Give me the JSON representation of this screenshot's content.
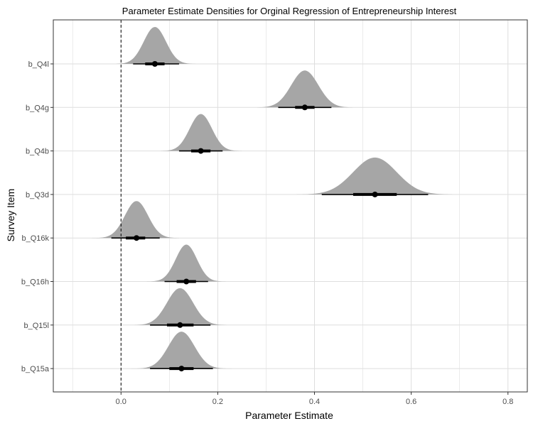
{
  "chart_data": {
    "type": "density",
    "title": "Parameter Estimate Densities for Orginal Regression of Entrepreneurship Interest",
    "xlabel": "Parameter Estimate",
    "ylabel": "Survey Item",
    "xlim": [
      -0.14,
      0.84
    ],
    "x_ticks": [
      0.0,
      0.2,
      0.4,
      0.6,
      0.8
    ],
    "x_tick_labels": [
      "0.0",
      "0.2",
      "0.4",
      "0.6",
      "0.8"
    ],
    "reference_line_x": 0,
    "grid": true,
    "colors": {
      "density": "#a6a6a6",
      "point": "#000000",
      "grid": "#dedede",
      "panel_border": "#333333"
    },
    "categories": [
      "b_Q4l",
      "b_Q4g",
      "b_Q4b",
      "b_Q3d",
      "b_Q16k",
      "b_Q16h",
      "b_Q15l",
      "b_Q15a"
    ],
    "series": [
      {
        "name": "b_Q4l",
        "mean": 0.07,
        "sd": 0.023,
        "min": -0.01,
        "max": 0.155,
        "ci66": [
          0.05,
          0.09
        ],
        "ci95": [
          0.025,
          0.12
        ]
      },
      {
        "name": "b_Q4g",
        "mean": 0.38,
        "sd": 0.028,
        "min": 0.26,
        "max": 0.49,
        "ci66": [
          0.36,
          0.4
        ],
        "ci95": [
          0.325,
          0.435
        ]
      },
      {
        "name": "b_Q4b",
        "mean": 0.165,
        "sd": 0.023,
        "min": 0.082,
        "max": 0.25,
        "ci66": [
          0.145,
          0.185
        ],
        "ci95": [
          0.12,
          0.21
        ]
      },
      {
        "name": "b_Q3d",
        "mean": 0.525,
        "sd": 0.045,
        "min": 0.345,
        "max": 0.715,
        "ci66": [
          0.48,
          0.57
        ],
        "ci95": [
          0.415,
          0.635
        ]
      },
      {
        "name": "b_Q16k",
        "mean": 0.032,
        "sd": 0.024,
        "min": -0.06,
        "max": 0.12,
        "ci66": [
          0.01,
          0.05
        ],
        "ci95": [
          -0.02,
          0.08
        ]
      },
      {
        "name": "b_Q16h",
        "mean": 0.135,
        "sd": 0.022,
        "min": 0.04,
        "max": 0.23,
        "ci66": [
          0.115,
          0.155
        ],
        "ci95": [
          0.09,
          0.18
        ]
      },
      {
        "name": "b_Q15l",
        "mean": 0.122,
        "sd": 0.027,
        "min": 0.0,
        "max": 0.24,
        "ci66": [
          0.095,
          0.15
        ],
        "ci95": [
          0.06,
          0.185
        ]
      },
      {
        "name": "b_Q15a",
        "mean": 0.125,
        "sd": 0.027,
        "min": 0.015,
        "max": 0.24,
        "ci66": [
          0.1,
          0.15
        ],
        "ci95": [
          0.06,
          0.19
        ]
      }
    ]
  }
}
